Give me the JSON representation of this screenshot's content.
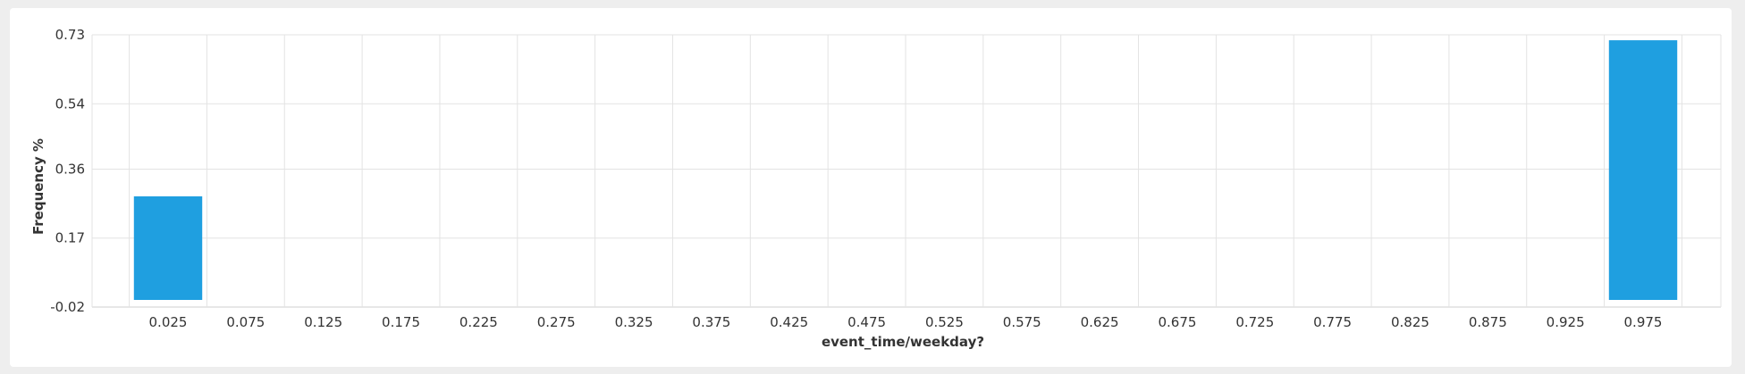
{
  "chart_data": {
    "type": "bar",
    "title": "",
    "xlabel": "event_time/weekday?",
    "ylabel": "Frequency %",
    "categories": [
      "0.025",
      "0.075",
      "0.125",
      "0.175",
      "0.225",
      "0.275",
      "0.325",
      "0.375",
      "0.425",
      "0.475",
      "0.525",
      "0.575",
      "0.625",
      "0.675",
      "0.725",
      "0.775",
      "0.825",
      "0.875",
      "0.925",
      "0.975"
    ],
    "values": [
      0.285,
      0,
      0,
      0,
      0,
      0,
      0,
      0,
      0,
      0,
      0,
      0,
      0,
      0,
      0,
      0,
      0,
      0,
      0,
      0.715
    ],
    "ylim": [
      -0.02,
      0.73
    ],
    "yticks": [
      "0.73",
      "0.54",
      "0.36",
      "0.17",
      "-0.02"
    ],
    "grid": true,
    "bar_color": "#1f9fe0"
  }
}
